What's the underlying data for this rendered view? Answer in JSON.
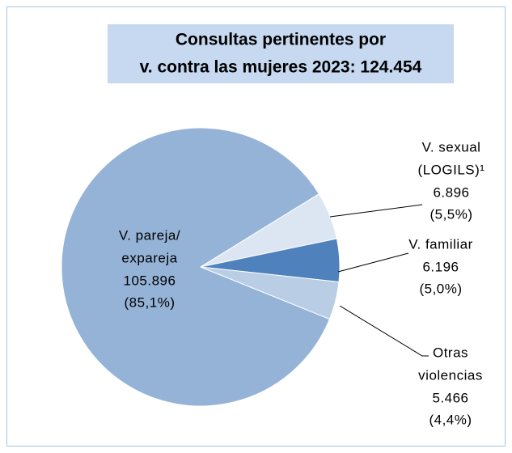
{
  "chart_data": {
    "type": "pie",
    "title": [
      "Consultas pertinentes por",
      "v. contra las mujeres 2023: 124.454"
    ],
    "categories": [
      [
        "V. pareja/",
        "expareja"
      ],
      [
        "V. sexual",
        "(LOGILS)¹"
      ],
      [
        "V. familiar"
      ],
      [
        "Otras",
        "violencias"
      ]
    ],
    "values": [
      105896,
      6896,
      6196,
      5466
    ],
    "value_labels": [
      "105.896",
      "6.896",
      "6.196",
      "5.466"
    ],
    "percent_values": [
      85.1,
      5.5,
      5.0,
      4.4
    ],
    "percent_labels": [
      "(85,1%)",
      "(5,5%)",
      "(5,0%)",
      "(4,4%)"
    ],
    "colors": [
      "#95b3d7",
      "#dce6f2",
      "#4f81bd",
      "#b9cde5"
    ]
  }
}
